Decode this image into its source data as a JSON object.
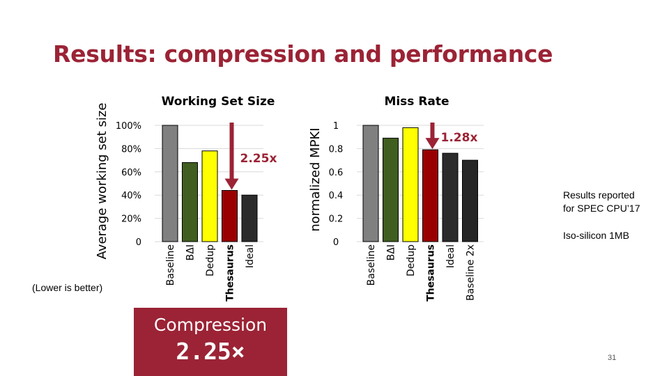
{
  "slide": {
    "title": "Results: compression and performance",
    "lower_note": "(Lower is better)",
    "compression_label": "Compression",
    "compression_value": "2.25×",
    "results_note_line1": "Results reported",
    "results_note_line2": "for SPEC CPU’17",
    "iso_note": "Iso-silicon 1MB",
    "page_number": "31"
  },
  "colors": {
    "title": "#9b2335",
    "arrow": "#9b2335",
    "Baseline": "#808080",
    "BΔI": "#3f5e1f",
    "Dedup": "#ffff00",
    "Thesaurus": "#9a0000",
    "Ideal": "#2b2b2b",
    "Baseline 2x": "#262626"
  },
  "chart_data": [
    {
      "type": "bar",
      "title": "Working Set Size",
      "ylabel": "Average working set size",
      "categories": [
        "Baseline",
        "BΔI",
        "Dedup",
        "Thesaurus",
        "Ideal"
      ],
      "values": [
        1.0,
        0.68,
        0.78,
        0.44,
        0.4
      ],
      "ylim": [
        0,
        1.0
      ],
      "yticks": [
        "0",
        "20%",
        "40%",
        "60%",
        "80%",
        "100%"
      ],
      "grid": true,
      "annotation": "2.25x",
      "annotation_target": "Thesaurus"
    },
    {
      "type": "bar",
      "title": "Miss Rate",
      "ylabel": "normalized MPKI",
      "categories": [
        "Baseline",
        "BΔI",
        "Dedup",
        "Thesaurus",
        "Ideal",
        "Baseline 2x"
      ],
      "values": [
        1.0,
        0.89,
        0.98,
        0.79,
        0.76,
        0.7
      ],
      "ylim": [
        0,
        1.0
      ],
      "yticks": [
        "0",
        "0.2",
        "0.4",
        "0.6",
        "0.8",
        "1"
      ],
      "grid": true,
      "annotation": "1.28x",
      "annotation_target": "Thesaurus"
    }
  ]
}
